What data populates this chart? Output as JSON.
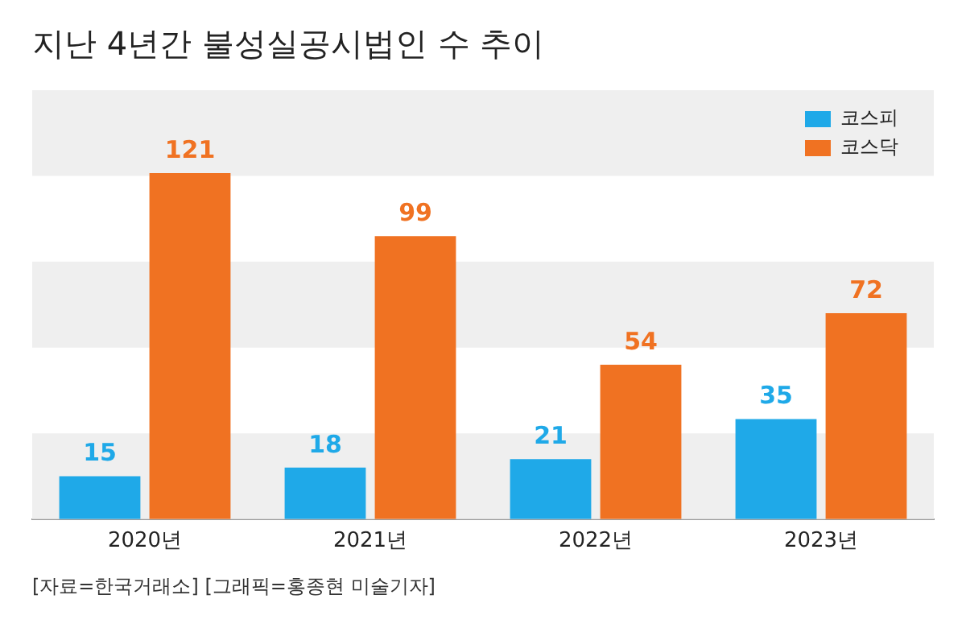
{
  "chart_data": {
    "type": "bar",
    "title": "지난 4년간 불성실공시법인 수 추이",
    "categories": [
      "2020년",
      "2021년",
      "2022년",
      "2023년"
    ],
    "series": [
      {
        "name": "코스피",
        "color": "#1fa9e8",
        "values": [
          15,
          18,
          21,
          35
        ]
      },
      {
        "name": "코스닥",
        "color": "#f07222",
        "values": [
          121,
          99,
          54,
          72
        ]
      }
    ],
    "ylim": [
      0,
      150
    ],
    "bands": [
      {
        "axis": "y",
        "from": 0,
        "to": 30,
        "color": "#efefef"
      },
      {
        "axis": "y",
        "from": 60,
        "to": 90,
        "color": "#efefef"
      },
      {
        "axis": "y",
        "from": 120,
        "to": 150,
        "color": "#efefef"
      }
    ],
    "tick_labels": "x",
    "data_labels": true,
    "legend": "top right",
    "grid": false,
    "annotations": [
      "[자료=한국거래소] [그래픽=홍종현 미술기자]"
    ]
  }
}
